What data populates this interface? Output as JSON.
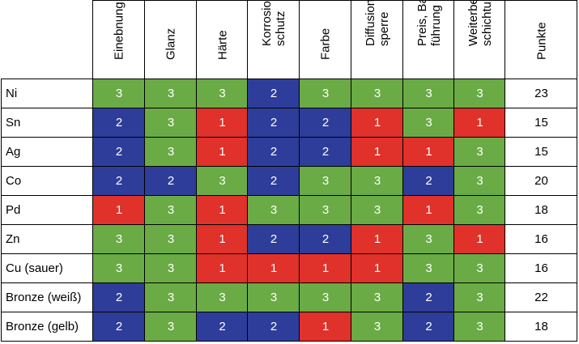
{
  "table": {
    "columns": [
      "Einebnung",
      "Glanz",
      "Härte",
      "Korrosions-\nschutz",
      "Farbe",
      "Diffusions-\nsperre",
      "Preis, Bad-\nführung",
      "Weiterbe-\nschichtung",
      "Punkte"
    ],
    "rows": [
      {
        "label": "Ni",
        "values": [
          "3",
          "3",
          "3",
          "2",
          "3",
          "3",
          "3",
          "3"
        ],
        "total": "23"
      },
      {
        "label": "Sn",
        "values": [
          "2",
          "3",
          "1",
          "2",
          "2",
          "1",
          "3",
          "1"
        ],
        "total": "15"
      },
      {
        "label": "Ag",
        "values": [
          "2",
          "3",
          "1",
          "2",
          "2",
          "1",
          "1",
          "3"
        ],
        "total": "15"
      },
      {
        "label": "Co",
        "values": [
          "2",
          "2",
          "3",
          "2",
          "3",
          "3",
          "2",
          "3"
        ],
        "total": "20"
      },
      {
        "label": "Pd",
        "values": [
          "1",
          "3",
          "1",
          "3",
          "3",
          "3",
          "1",
          "3"
        ],
        "total": "18"
      },
      {
        "label": "Zn",
        "values": [
          "3",
          "3",
          "1",
          "2",
          "2",
          "1",
          "3",
          "1"
        ],
        "total": "16"
      },
      {
        "label": "Cu (sauer)",
        "values": [
          "3",
          "3",
          "1",
          "1",
          "1",
          "1",
          "3",
          "3"
        ],
        "total": "16"
      },
      {
        "label": "Bronze (weiß)",
        "values": [
          "2",
          "3",
          "3",
          "3",
          "3",
          "3",
          "2",
          "3"
        ],
        "total": "22"
      },
      {
        "label": "Bronze (gelb)",
        "values": [
          "2",
          "3",
          "2",
          "2",
          "1",
          "3",
          "2",
          "3"
        ],
        "total": "18"
      }
    ]
  },
  "colors": {
    "score_3": "#6aab45",
    "score_2": "#2e3d9a",
    "score_1": "#e0312a",
    "border": "#000000"
  }
}
